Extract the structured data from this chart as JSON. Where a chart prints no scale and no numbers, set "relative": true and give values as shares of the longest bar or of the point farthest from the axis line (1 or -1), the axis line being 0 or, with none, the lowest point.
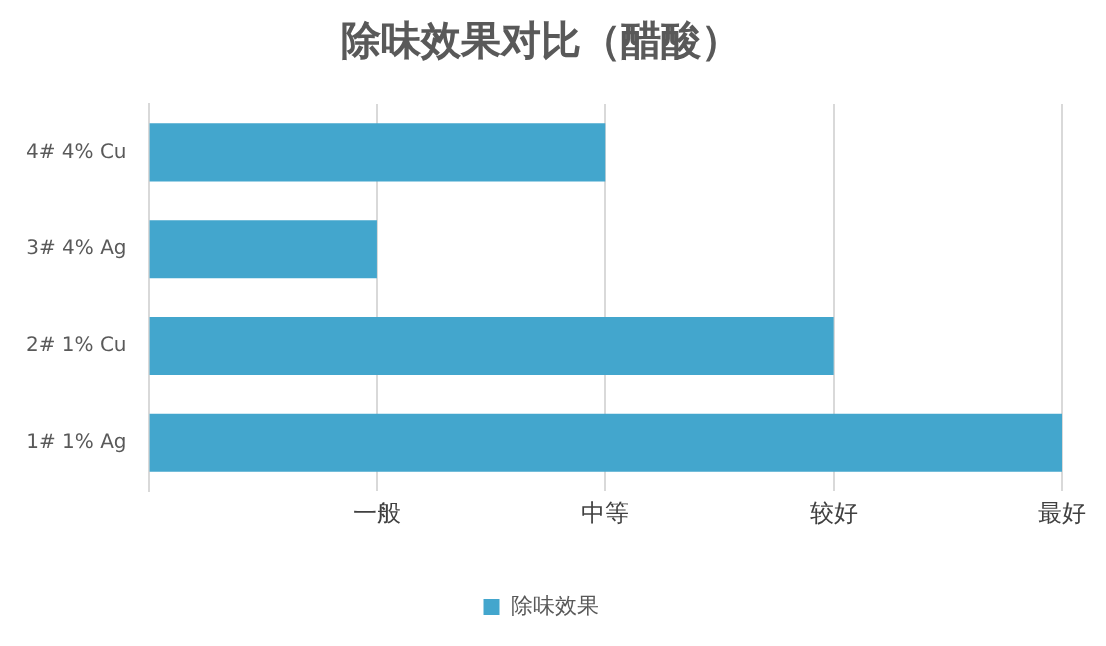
{
  "chart_data": {
    "type": "bar",
    "orientation": "horizontal",
    "title": "除味效果对比（醋酸）",
    "relative": true,
    "categories": [
      "4# 4% Cu",
      "3# 4% Ag",
      "2# 1% Cu",
      "1# 1% Ag"
    ],
    "series": [
      {
        "name": "除味效果",
        "color": "#43a6cd",
        "values": [
          0.5,
          0.25,
          0.75,
          1
        ]
      }
    ],
    "annotations": [
      "一般",
      "中等",
      "较好",
      "最好"
    ],
    "grid": "x",
    "legend": "bottom"
  }
}
